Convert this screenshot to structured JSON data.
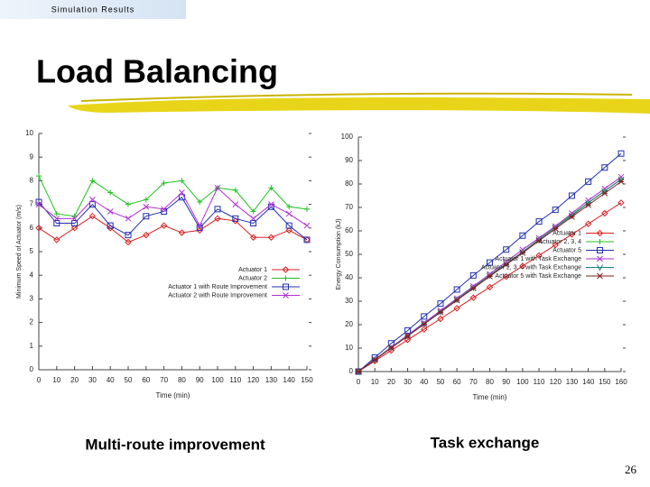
{
  "header": "Simulation Results",
  "title": "Load Balancing",
  "captions": [
    "Multi-route improvement",
    "Task exchange"
  ],
  "page_number": "26",
  "chart_data": [
    {
      "type": "line",
      "x_label": "Time (min)",
      "y_label": "Minimum Speed of Actuator (m/s)",
      "x": [
        0,
        10,
        20,
        30,
        40,
        50,
        60,
        70,
        80,
        90,
        100,
        110,
        120,
        130,
        140,
        150
      ],
      "xlim": [
        0,
        150
      ],
      "xticks": [
        0,
        10,
        20,
        30,
        40,
        50,
        60,
        70,
        80,
        90,
        100,
        110,
        120,
        130,
        140,
        150
      ],
      "ylim": [
        0,
        10
      ],
      "yticks": [
        0,
        1,
        2,
        3,
        4,
        5,
        6,
        7,
        8,
        9,
        10
      ],
      "legend": "center right",
      "series": [
        {
          "name": "Actuator 1",
          "color": "#d62020",
          "marker": "diamond",
          "values": [
            6,
            5.5,
            6,
            6.5,
            6,
            5.4,
            5.7,
            6.1,
            5.8,
            5.9,
            6.4,
            6.3,
            5.6,
            5.6,
            5.9,
            5.5
          ]
        },
        {
          "name": "Actuator 2",
          "color": "#20c020",
          "marker": "plus",
          "values": [
            8.2,
            6.6,
            6.5,
            8,
            7.5,
            7,
            7.2,
            7.9,
            8,
            7.1,
            7.7,
            7.6,
            6.7,
            7.7,
            6.9,
            6.8
          ]
        },
        {
          "name": "Actuator 1 with Route Improvement",
          "color": "#2030b0",
          "marker": "square",
          "values": [
            7.1,
            6.2,
            6.2,
            7,
            6.1,
            5.7,
            6.5,
            6.7,
            7.3,
            6,
            6.8,
            6.4,
            6.2,
            6.9,
            6.1,
            5.5
          ]
        },
        {
          "name": "Actuator 2 with Route Improvement",
          "color": "#b030d0",
          "marker": "x",
          "values": [
            7,
            6.4,
            6.4,
            7.2,
            6.7,
            6.4,
            6.9,
            6.8,
            7.5,
            6.1,
            7.7,
            7,
            6.4,
            7,
            6.6,
            6.1
          ]
        }
      ]
    },
    {
      "type": "line",
      "x_label": "Time (min)",
      "y_label": "Energy Consumption (kJ)",
      "x": [
        0,
        10,
        20,
        30,
        40,
        50,
        60,
        70,
        80,
        90,
        100,
        110,
        120,
        130,
        140,
        150,
        160
      ],
      "xlim": [
        0,
        160
      ],
      "xticks": [
        0,
        10,
        20,
        30,
        40,
        50,
        60,
        70,
        80,
        90,
        100,
        110,
        120,
        130,
        140,
        150,
        160
      ],
      "ylim": [
        0,
        100
      ],
      "yticks": [
        0,
        10,
        20,
        30,
        40,
        50,
        60,
        70,
        80,
        90,
        100
      ],
      "legend": "lower right",
      "series": [
        {
          "name": "Actuator 1",
          "color": "#d62020",
          "marker": "diamond",
          "values": [
            0,
            4.5,
            9,
            13.5,
            18,
            22.5,
            27,
            31.5,
            36,
            40.5,
            45,
            49.5,
            54,
            58.5,
            63,
            67.5,
            72
          ]
        },
        {
          "name": "Actuator 2, 3, 4",
          "color": "#20c020",
          "marker": "plus",
          "values": [
            0,
            5,
            10,
            15.5,
            20.5,
            25.5,
            31,
            36,
            41,
            46,
            51,
            56.5,
            61.5,
            67,
            72,
            77,
            82
          ]
        },
        {
          "name": "Actuator 5",
          "color": "#2030b0",
          "marker": "square",
          "values": [
            0,
            6,
            12,
            17.5,
            23.5,
            29,
            35,
            41,
            46.5,
            52,
            58,
            64,
            69,
            75,
            81,
            87,
            93
          ]
        },
        {
          "name": "Actuator 1 with Task Exchange",
          "color": "#b030d0",
          "marker": "x",
          "values": [
            0,
            5.2,
            10.4,
            15.6,
            20.8,
            26,
            31.2,
            36.4,
            41.6,
            46.8,
            52,
            57,
            62,
            67.5,
            73,
            78,
            83
          ]
        },
        {
          "name": "Actuator 2, 3, 4 with Task Exchange",
          "color": "#208080",
          "marker": "v",
          "values": [
            0,
            5.1,
            10.2,
            15.3,
            20.4,
            25.5,
            30.7,
            35.8,
            41,
            46,
            51,
            56.3,
            61.5,
            66.5,
            72,
            77,
            82
          ]
        },
        {
          "name": "Actuator 5 with Task Exchange",
          "color": "#802020",
          "marker": "star",
          "values": [
            0,
            5,
            10.1,
            15.1,
            20.2,
            25.3,
            30.4,
            35.5,
            40.6,
            45.6,
            50.6,
            55.8,
            60.9,
            66,
            71,
            76,
            81
          ]
        }
      ]
    }
  ]
}
